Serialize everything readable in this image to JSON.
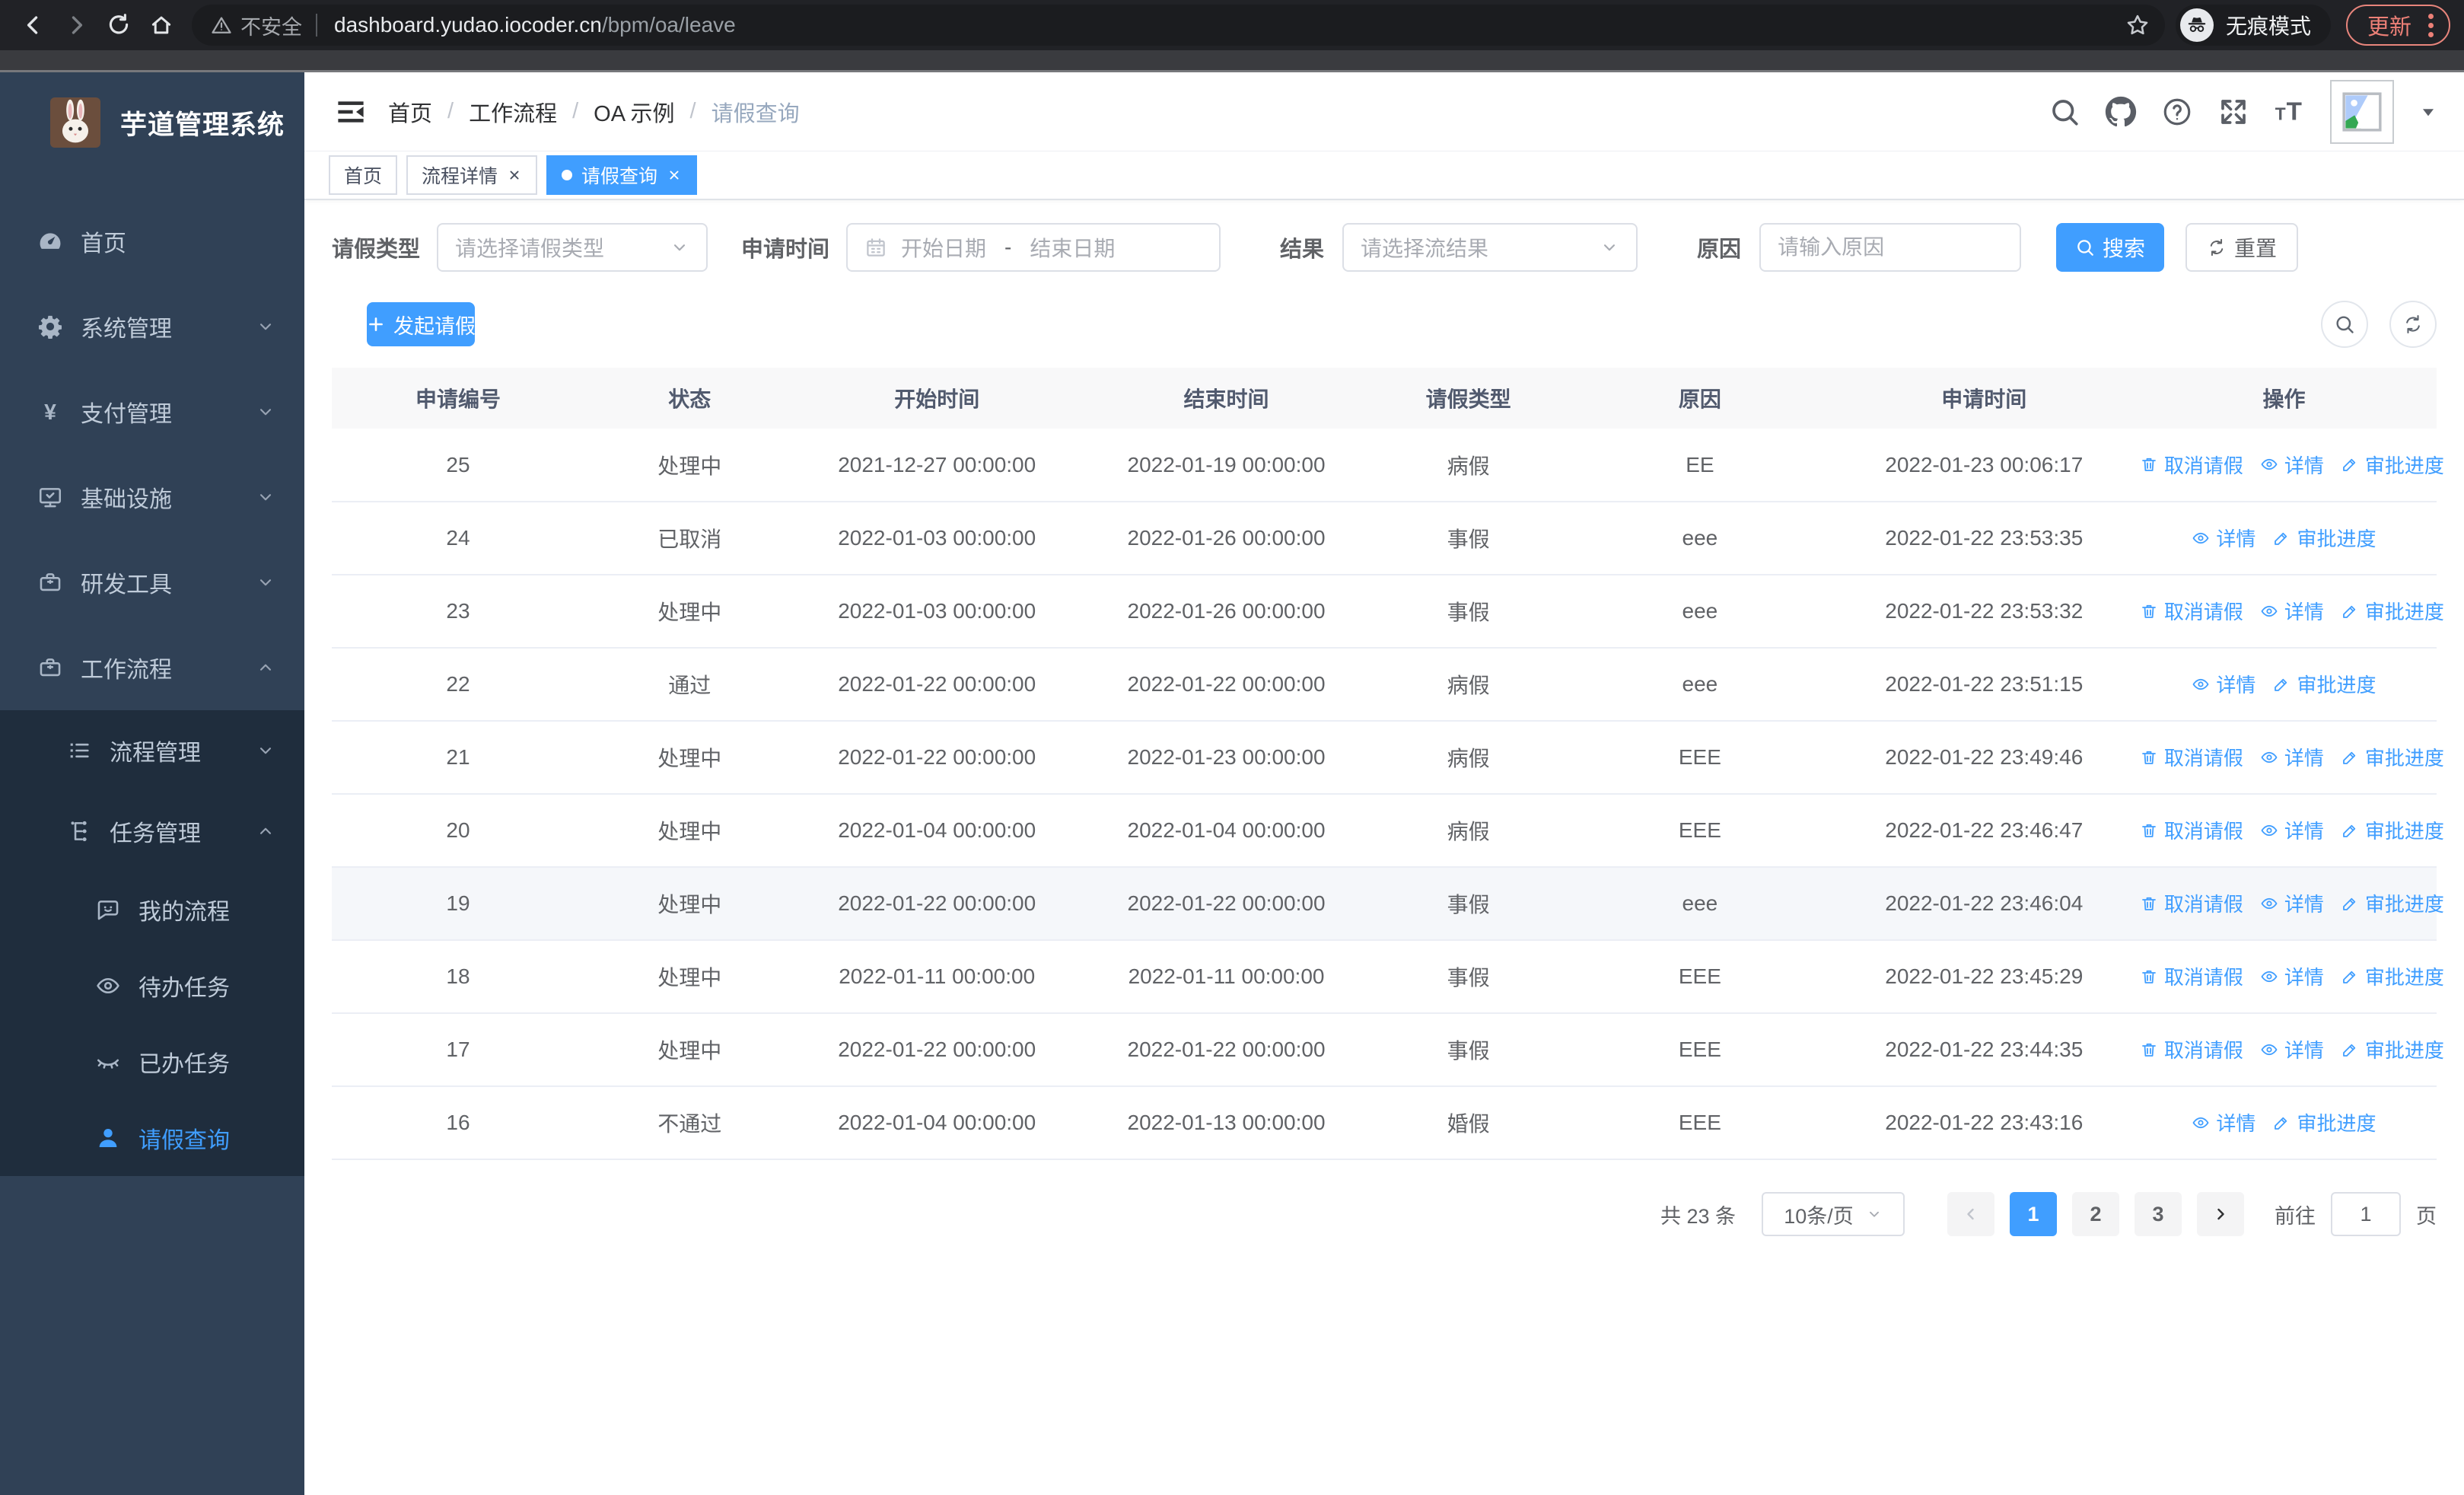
{
  "browser": {
    "security_warning": "不安全",
    "url_host": "dashboard.yudao.iocoder.cn",
    "url_path": "/bpm/oa/leave",
    "incognito_label": "无痕模式",
    "update_label": "更新"
  },
  "colors": {
    "primary": "#409EFF",
    "sidebar_bg": "#304156",
    "submenu_bg": "#1F2D3D",
    "update_accent": "#ED8077",
    "table_header_bg": "#F8F8F9"
  },
  "sidebar": {
    "app_title": "芋道管理系统",
    "items": [
      {
        "label": "首页",
        "icon": "dashboard-icon",
        "glyph": "dashboard",
        "level": 1,
        "arrow": null,
        "group": "root",
        "active": false
      },
      {
        "label": "系统管理",
        "icon": "gear-icon",
        "glyph": "gear",
        "level": 1,
        "arrow": "down",
        "group": "root",
        "active": false
      },
      {
        "label": "支付管理",
        "icon": "yen-icon",
        "glyph": "yen",
        "level": 1,
        "arrow": "down",
        "group": "root",
        "active": false
      },
      {
        "label": "基础设施",
        "icon": "monitor-icon",
        "glyph": "monitor",
        "level": 1,
        "arrow": "down",
        "group": "root",
        "active": false
      },
      {
        "label": "研发工具",
        "icon": "toolbox-icon",
        "glyph": "briefcase",
        "level": 1,
        "arrow": "down",
        "group": "root",
        "active": false
      },
      {
        "label": "工作流程",
        "icon": "briefcase-icon",
        "glyph": "briefcase",
        "level": 1,
        "arrow": "up",
        "group": "root",
        "active": false
      },
      {
        "label": "流程管理",
        "icon": "list-icon",
        "glyph": "list",
        "level": 2,
        "arrow": "down",
        "group": "sub",
        "active": false
      },
      {
        "label": "任务管理",
        "icon": "org-icon",
        "glyph": "org",
        "level": 2,
        "arrow": "up",
        "group": "sub",
        "active": false
      },
      {
        "label": "我的流程",
        "icon": "chat-icon",
        "glyph": "chat",
        "level": 3,
        "arrow": null,
        "group": "sub",
        "active": false
      },
      {
        "label": "待办任务",
        "icon": "eye-open-icon",
        "glyph": "eye",
        "level": 3,
        "arrow": null,
        "group": "sub",
        "active": false
      },
      {
        "label": "已办任务",
        "icon": "eye-closed-icon",
        "glyph": "eyeclosed",
        "level": 3,
        "arrow": null,
        "group": "sub",
        "active": false
      },
      {
        "label": "请假查询",
        "icon": "user-icon",
        "glyph": "user",
        "level": 3,
        "arrow": null,
        "group": "sub",
        "active": true
      }
    ]
  },
  "header": {
    "breadcrumb": [
      "首页",
      "工作流程",
      "OA 示例",
      "请假查询"
    ],
    "breadcrumb_separator": "/"
  },
  "tabs": [
    {
      "label": "首页",
      "closable": false,
      "active": false
    },
    {
      "label": "流程详情",
      "closable": true,
      "active": false
    },
    {
      "label": "请假查询",
      "closable": true,
      "active": true
    }
  ],
  "filters": {
    "leave_type_label": "请假类型",
    "leave_type_placeholder": "请选择请假类型",
    "apply_time_label": "申请时间",
    "start_date_placeholder": "开始日期",
    "range_separator": "-",
    "end_date_placeholder": "结束日期",
    "result_label": "结果",
    "result_placeholder": "请选择流结果",
    "reason_label": "原因",
    "reason_placeholder": "请输入原因",
    "search_label": "搜索",
    "reset_label": "重置"
  },
  "toolbar": {
    "create_label": "发起请假"
  },
  "table": {
    "columns": [
      "申请编号",
      "状态",
      "开始时间",
      "结束时间",
      "请假类型",
      "原因",
      "申请时间",
      "操作"
    ],
    "actions": {
      "cancel": "取消请假",
      "detail": "详情",
      "progress": "审批进度"
    },
    "rows": [
      {
        "id": "25",
        "status": "处理中",
        "start": "2021-12-27 00:00:00",
        "end": "2022-01-19 00:00:00",
        "type": "病假",
        "reason": "EE",
        "applied": "2022-01-23 00:06:17",
        "can_cancel": true,
        "highlight": false
      },
      {
        "id": "24",
        "status": "已取消",
        "start": "2022-01-03 00:00:00",
        "end": "2022-01-26 00:00:00",
        "type": "事假",
        "reason": "eee",
        "applied": "2022-01-22 23:53:35",
        "can_cancel": false,
        "highlight": false
      },
      {
        "id": "23",
        "status": "处理中",
        "start": "2022-01-03 00:00:00",
        "end": "2022-01-26 00:00:00",
        "type": "事假",
        "reason": "eee",
        "applied": "2022-01-22 23:53:32",
        "can_cancel": true,
        "highlight": false
      },
      {
        "id": "22",
        "status": "通过",
        "start": "2022-01-22 00:00:00",
        "end": "2022-01-22 00:00:00",
        "type": "病假",
        "reason": "eee",
        "applied": "2022-01-22 23:51:15",
        "can_cancel": false,
        "highlight": false
      },
      {
        "id": "21",
        "status": "处理中",
        "start": "2022-01-22 00:00:00",
        "end": "2022-01-23 00:00:00",
        "type": "病假",
        "reason": "EEE",
        "applied": "2022-01-22 23:49:46",
        "can_cancel": true,
        "highlight": false
      },
      {
        "id": "20",
        "status": "处理中",
        "start": "2022-01-04 00:00:00",
        "end": "2022-01-04 00:00:00",
        "type": "病假",
        "reason": "EEE",
        "applied": "2022-01-22 23:46:47",
        "can_cancel": true,
        "highlight": false
      },
      {
        "id": "19",
        "status": "处理中",
        "start": "2022-01-22 00:00:00",
        "end": "2022-01-22 00:00:00",
        "type": "事假",
        "reason": "eee",
        "applied": "2022-01-22 23:46:04",
        "can_cancel": true,
        "highlight": true
      },
      {
        "id": "18",
        "status": "处理中",
        "start": "2022-01-11 00:00:00",
        "end": "2022-01-11 00:00:00",
        "type": "事假",
        "reason": "EEE",
        "applied": "2022-01-22 23:45:29",
        "can_cancel": true,
        "highlight": false
      },
      {
        "id": "17",
        "status": "处理中",
        "start": "2022-01-22 00:00:00",
        "end": "2022-01-22 00:00:00",
        "type": "事假",
        "reason": "EEE",
        "applied": "2022-01-22 23:44:35",
        "can_cancel": true,
        "highlight": false
      },
      {
        "id": "16",
        "status": "不通过",
        "start": "2022-01-04 00:00:00",
        "end": "2022-01-13 00:00:00",
        "type": "婚假",
        "reason": "EEE",
        "applied": "2022-01-22 23:43:16",
        "can_cancel": false,
        "highlight": false
      }
    ]
  },
  "pagination": {
    "total_text": "共 23 条",
    "page_size": "10条/页",
    "pages": [
      "1",
      "2",
      "3"
    ],
    "active_page": "1",
    "goto_label": "前往",
    "goto_value": "1",
    "goto_suffix": "页"
  }
}
